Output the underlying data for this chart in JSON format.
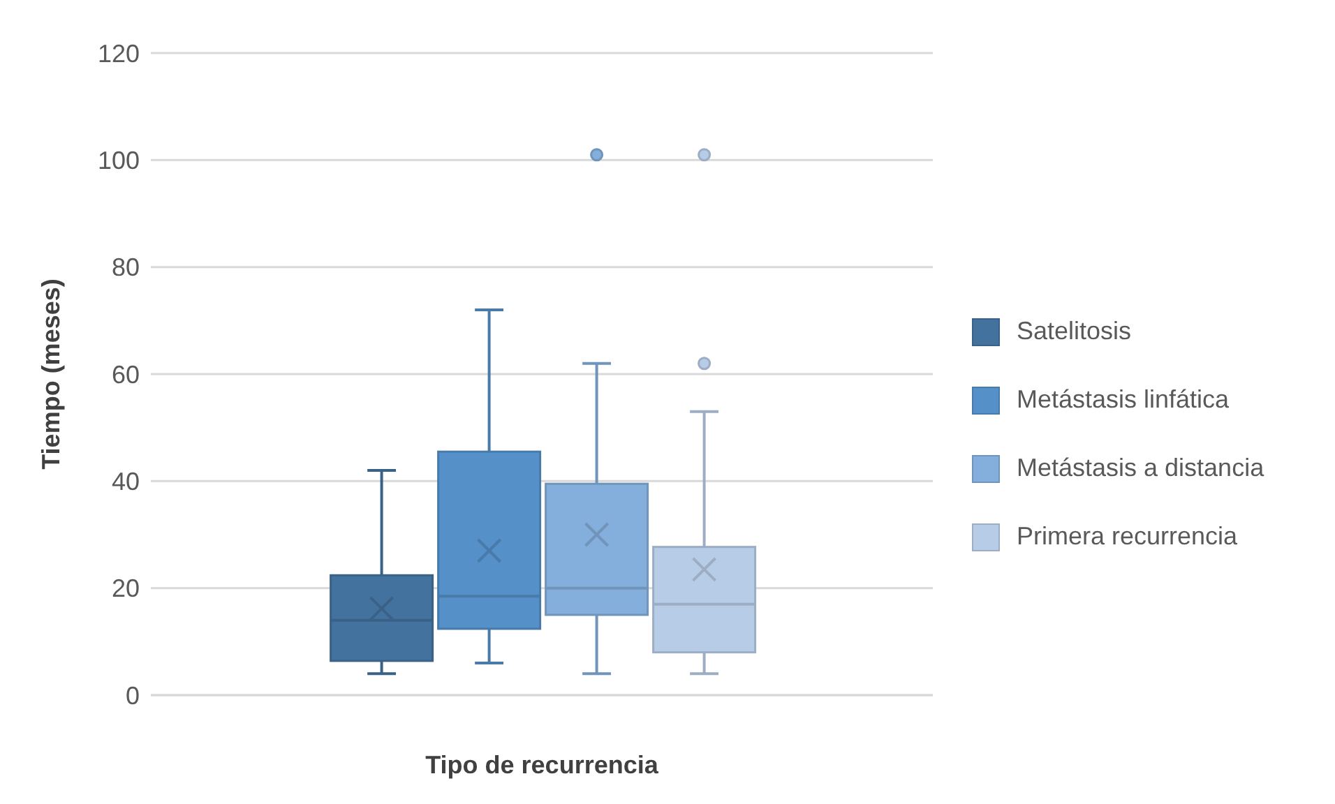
{
  "chart_data": {
    "type": "box",
    "xlabel": "Tipo de recurrencia",
    "ylabel": "Tiempo (meses)",
    "categories": [
      null
    ],
    "ylim": [
      0,
      120
    ],
    "yticks": [
      0,
      20,
      40,
      60,
      80,
      100,
      120
    ],
    "grid": "y",
    "legend": "right",
    "series": [
      {
        "name": "Satelitosis",
        "color": "#44729f",
        "boxes": [
          {
            "low": 4,
            "q1": 6.4,
            "median": 14,
            "q3": 22.4,
            "high": 42,
            "mean": 16.2
          }
        ]
      },
      {
        "name": "Metástasis linfática",
        "color": "#5590c8",
        "boxes": [
          {
            "low": 6,
            "q1": 12.4,
            "median": 18.5,
            "q3": 45.5,
            "high": 72,
            "mean": 27
          }
        ]
      },
      {
        "name": "Metástasis a distancia",
        "color": "#84aedb",
        "boxes": [
          {
            "low": 4,
            "q1": 15,
            "median": 20,
            "q3": 39.5,
            "high": 62,
            "mean": 30,
            "outliers": [
              101
            ]
          }
        ]
      },
      {
        "name": "Primera recurrencia",
        "color": "#b7cce6",
        "boxes": [
          {
            "low": 4,
            "q1": 8,
            "median": 17,
            "q3": 27.7,
            "high": 53,
            "mean": 23.5,
            "outliers": [
              62,
              101
            ]
          }
        ]
      }
    ]
  }
}
